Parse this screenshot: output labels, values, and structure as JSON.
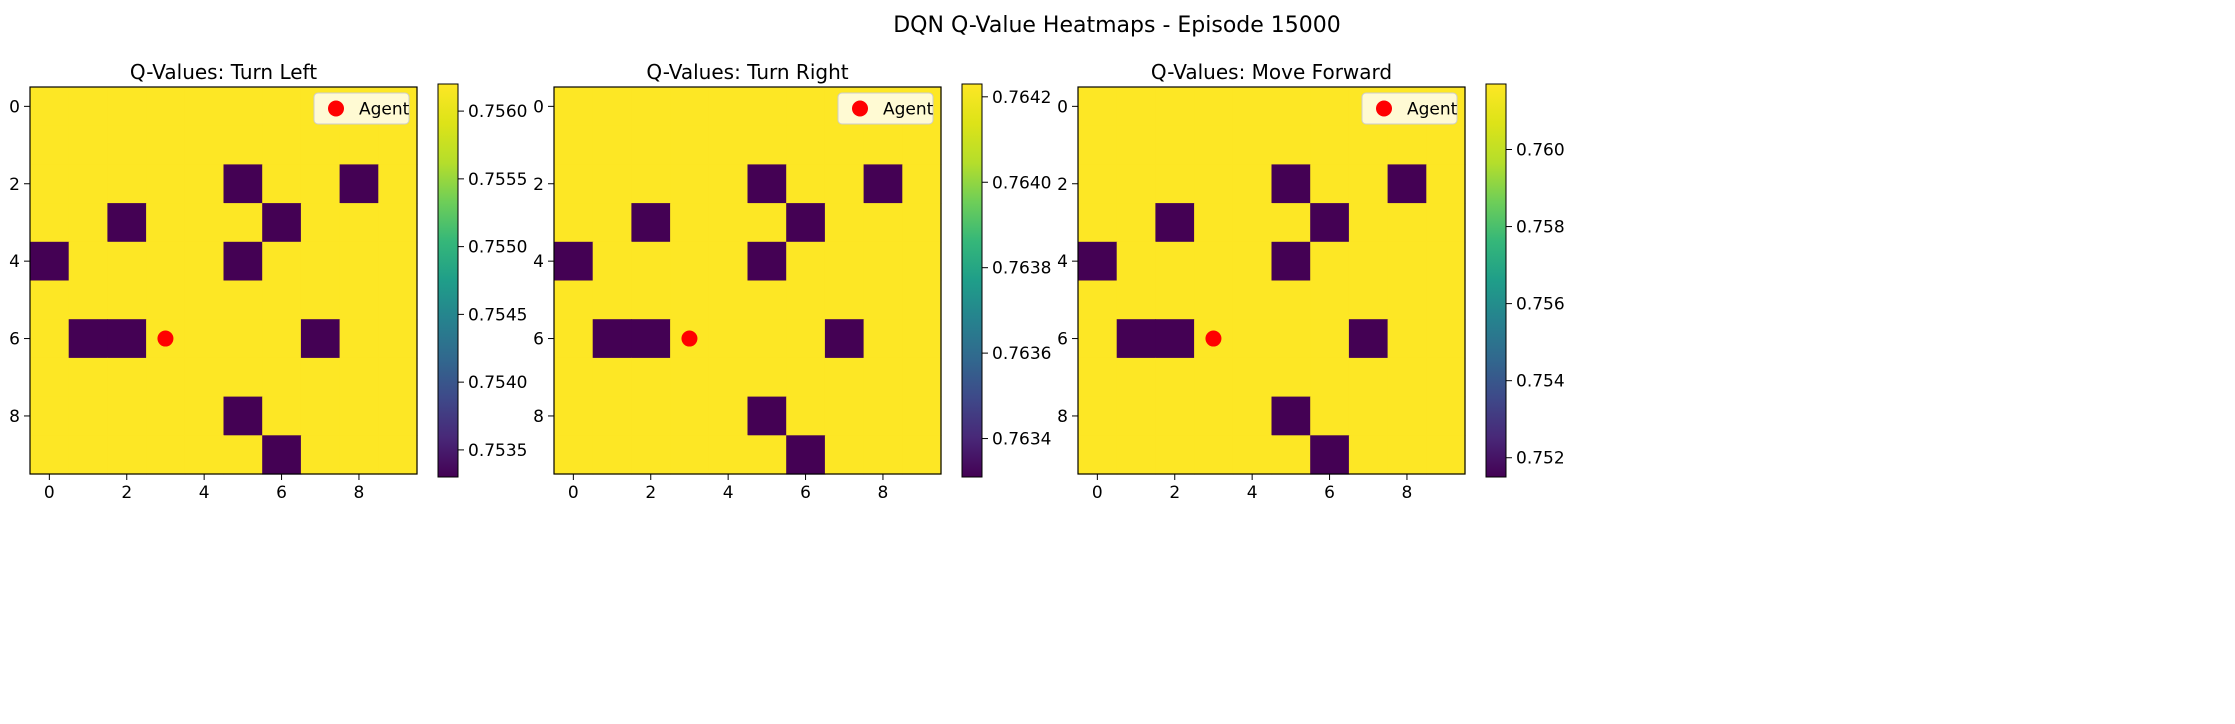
{
  "figure": {
    "suptitle": "DQN Q-Value Heatmaps - Episode 15000"
  },
  "chart_data": [
    {
      "type": "heatmap",
      "title": "Q-Values: Turn Left",
      "grid_size": [
        10,
        10
      ],
      "xlim": [
        -0.5,
        9.5
      ],
      "ylim": [
        9.5,
        -0.5
      ],
      "x_ticks": [
        0,
        2,
        4,
        6,
        8
      ],
      "y_ticks": [
        0,
        2,
        4,
        6,
        8
      ],
      "colormap": "viridis",
      "value_range": [
        0.7533,
        0.7562
      ],
      "high_value": 0.7562,
      "low_value": 0.7533,
      "low_cells": [
        [
          2,
          5
        ],
        [
          2,
          8
        ],
        [
          3,
          2
        ],
        [
          3,
          6
        ],
        [
          4,
          0
        ],
        [
          4,
          5
        ],
        [
          6,
          1
        ],
        [
          6,
          2
        ],
        [
          6,
          7
        ],
        [
          8,
          5
        ],
        [
          9,
          6
        ]
      ],
      "colorbar_ticks": [
        "0.7535",
        "0.7540",
        "0.7545",
        "0.7550",
        "0.7555",
        "0.7560"
      ],
      "colorbar_tick_values": [
        0.7535,
        0.754,
        0.7545,
        0.755,
        0.7555,
        0.756
      ],
      "agent": {
        "x": 3,
        "y": 6,
        "color": "#ff0000"
      },
      "legend": {
        "label": "Agent",
        "position": "upper right"
      }
    },
    {
      "type": "heatmap",
      "title": "Q-Values: Turn Right",
      "grid_size": [
        10,
        10
      ],
      "xlim": [
        -0.5,
        9.5
      ],
      "ylim": [
        9.5,
        -0.5
      ],
      "x_ticks": [
        0,
        2,
        4,
        6,
        8
      ],
      "y_ticks": [
        0,
        2,
        4,
        6,
        8
      ],
      "colormap": "viridis",
      "value_range": [
        0.76331,
        0.76423
      ],
      "high_value": 0.76423,
      "low_value": 0.76331,
      "low_cells": [
        [
          2,
          5
        ],
        [
          2,
          8
        ],
        [
          3,
          2
        ],
        [
          3,
          6
        ],
        [
          4,
          0
        ],
        [
          4,
          5
        ],
        [
          6,
          1
        ],
        [
          6,
          2
        ],
        [
          6,
          7
        ],
        [
          8,
          5
        ],
        [
          9,
          6
        ]
      ],
      "colorbar_ticks": [
        "0.7634",
        "0.7636",
        "0.7638",
        "0.7640",
        "0.7642"
      ],
      "colorbar_tick_values": [
        0.7634,
        0.7636,
        0.7638,
        0.764,
        0.7642
      ],
      "agent": {
        "x": 3,
        "y": 6,
        "color": "#ff0000"
      },
      "legend": {
        "label": "Agent",
        "position": "upper right"
      }
    },
    {
      "type": "heatmap",
      "title": "Q-Values: Move Forward",
      "grid_size": [
        10,
        10
      ],
      "xlim": [
        -0.5,
        9.5
      ],
      "ylim": [
        9.5,
        -0.5
      ],
      "x_ticks": [
        0,
        2,
        4,
        6,
        8
      ],
      "y_ticks": [
        0,
        2,
        4,
        6,
        8
      ],
      "colormap": "viridis",
      "value_range": [
        0.7515,
        0.7617
      ],
      "high_value": 0.7617,
      "low_value": 0.7515,
      "low_cells": [
        [
          2,
          5
        ],
        [
          2,
          8
        ],
        [
          3,
          2
        ],
        [
          3,
          6
        ],
        [
          4,
          0
        ],
        [
          4,
          5
        ],
        [
          6,
          1
        ],
        [
          6,
          2
        ],
        [
          6,
          7
        ],
        [
          8,
          5
        ],
        [
          9,
          6
        ]
      ],
      "colorbar_ticks": [
        "0.752",
        "0.754",
        "0.756",
        "0.758",
        "0.760"
      ],
      "colorbar_tick_values": [
        0.752,
        0.754,
        0.756,
        0.758,
        0.76
      ],
      "agent": {
        "x": 3,
        "y": 6,
        "color": "#ff0000"
      },
      "legend": {
        "label": "Agent",
        "position": "upper right"
      }
    }
  ]
}
